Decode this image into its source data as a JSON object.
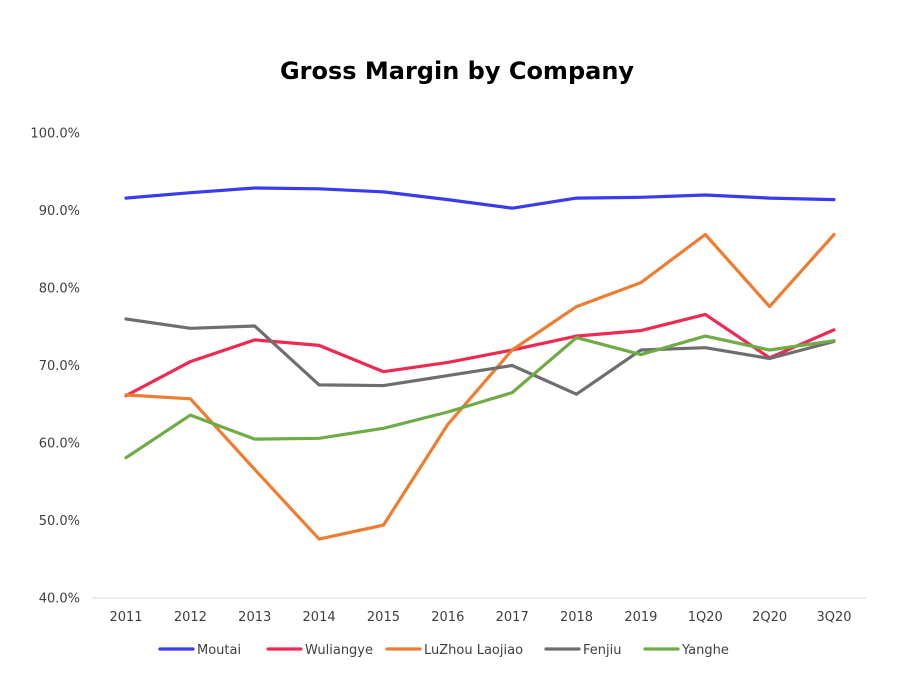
{
  "chart_data": {
    "type": "line",
    "title": "Gross Margin by Company",
    "xlabel": "",
    "ylabel": "",
    "categories": [
      "2011",
      "2012",
      "2013",
      "2014",
      "2015",
      "2016",
      "2017",
      "2018",
      "2019",
      "1Q20",
      "2Q20",
      "3Q20"
    ],
    "ylim": [
      40.0,
      100.0
    ],
    "yticks": [
      40.0,
      50.0,
      60.0,
      70.0,
      80.0,
      90.0,
      100.0
    ],
    "ytick_labels": [
      "40.0%",
      "50.0%",
      "60.0%",
      "70.0%",
      "80.0%",
      "90.0%",
      "100.0%"
    ],
    "grid": false,
    "legend_position": "bottom",
    "series": [
      {
        "name": "Moutai",
        "color": "#3a3aee",
        "values": [
          91.6,
          92.3,
          92.9,
          92.8,
          92.4,
          91.4,
          90.3,
          91.6,
          91.7,
          92.0,
          91.6,
          91.4
        ]
      },
      {
        "name": "Wuliangye",
        "color": "#ee2a52",
        "values": [
          66.1,
          70.5,
          73.3,
          72.6,
          69.2,
          70.4,
          72.0,
          73.8,
          74.5,
          76.6,
          71.0,
          74.6
        ]
      },
      {
        "name": "LuZhou Laojiao",
        "color": "#ee7d31",
        "values": [
          66.2,
          65.7,
          56.6,
          47.6,
          49.4,
          62.4,
          72.0,
          77.6,
          80.7,
          86.9,
          77.6,
          86.9
        ]
      },
      {
        "name": "Fenjiu",
        "color": "#6e6e6e",
        "values": [
          76.0,
          74.8,
          75.1,
          67.5,
          67.4,
          68.7,
          70.0,
          66.3,
          72.0,
          72.3,
          70.9,
          73.1
        ]
      },
      {
        "name": "Yanghe",
        "color": "#6fac46",
        "values": [
          58.1,
          63.6,
          60.5,
          60.6,
          61.9,
          64.0,
          66.5,
          73.6,
          71.4,
          73.8,
          72.0,
          73.2
        ]
      }
    ]
  }
}
